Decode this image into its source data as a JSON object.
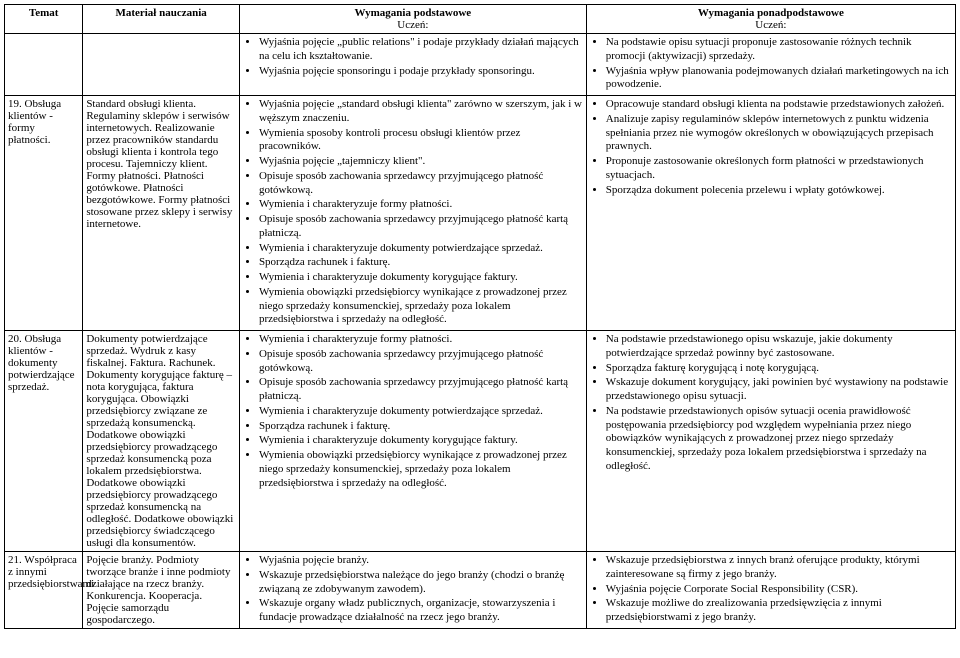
{
  "headers": {
    "temat": "Temat",
    "material": "Materiał nauczania",
    "podstawowe": "Wymagania podstawowe",
    "ponad": "Wymagania ponadpodstawowe",
    "uczen": "Uczeń:"
  },
  "rows": [
    {
      "temat": "",
      "material": "",
      "podst": [
        "Wyjaśnia pojęcie „public relations\" i podaje przykłady działań mających na celu ich kształtowanie.",
        "Wyjaśnia pojęcie sponsoringu i podaje przykłady sponsoringu."
      ],
      "ponad": [
        "Na podstawie opisu sytuacji proponuje zastosowanie różnych technik promocji (aktywizacji) sprzedaży.",
        "Wyjaśnia wpływ planowania podejmowanych działań marketingowych na ich powodzenie."
      ]
    },
    {
      "temat": "19. Obsługa klientów - formy płatności.",
      "material": "Standard obsługi klienta. Regulaminy sklepów i serwisów internetowych. Realizowanie przez pracowników standardu obsługi klienta i kontrola tego procesu. Tajemniczy klient. Formy płatności. Płatności gotówkowe. Płatności bezgotówkowe. Formy płatności stosowane przez sklepy i serwisy internetowe.",
      "podst": [
        "Wyjaśnia pojęcie „standard obsługi klienta\" zarówno w szerszym, jak i w węższym znaczeniu.",
        "Wymienia sposoby kontroli procesu obsługi klientów przez pracowników.",
        "Wyjaśnia pojęcie „tajemniczy klient\".",
        "Opisuje sposób zachowania sprzedawcy przyjmującego płatność gotówkową.",
        "Wymienia i charakteryzuje formy płatności.",
        "Opisuje sposób zachowania sprzedawcy przyjmującego płatność kartą płatniczą.",
        "Wymienia i charakteryzuje dokumenty potwierdzające sprzedaż.",
        "Sporządza rachunek i fakturę.",
        "Wymienia i charakteryzuje dokumenty korygujące faktury.",
        "Wymienia obowiązki przedsiębiorcy wynikające z prowadzonej przez niego sprzedaży konsumenckiej, sprzedaży poza lokalem przedsiębiorstwa i sprzedaży na odległość."
      ],
      "ponad": [
        "Opracowuje standard obsługi klienta na podstawie przedstawionych założeń.",
        "Analizuje zapisy regulaminów sklepów internetowych z punktu widzenia spełniania przez nie wymogów określonych w obowiązujących przepisach prawnych.",
        "Proponuje zastosowanie określonych form płatności w przedstawionych sytuacjach.",
        "Sporządza dokument polecenia przelewu i wpłaty gotówkowej."
      ]
    },
    {
      "temat": "20. Obsługa klientów - dokumenty potwierdzające sprzedaż.",
      "material": "Dokumenty potwierdzające sprzedaż. Wydruk z kasy fiskalnej. Faktura. Rachunek. Dokumenty korygujące fakturę – nota korygująca, faktura korygująca. Obowiązki przedsiębiorcy związane ze sprzedażą konsumencką. Dodatkowe obowiązki przedsiębiorcy prowadzącego sprzedaż konsumencką poza lokalem przedsiębiorstwa. Dodatkowe obowiązki przedsiębiorcy prowadzącego sprzedaż konsumencką na odległość. Dodatkowe obowiązki przedsiębiorcy świadczącego usługi dla konsumentów.",
      "podst": [
        "Wymienia i charakteryzuje formy płatności.",
        "Opisuje sposób zachowania sprzedawcy przyjmującego płatność gotówkową.",
        "Opisuje sposób zachowania sprzedawcy przyjmującego płatność kartą płatniczą.",
        "Wymienia i charakteryzuje dokumenty potwierdzające sprzedaż.",
        "Sporządza rachunek i fakturę.",
        "Wymienia i charakteryzuje dokumenty korygujące faktury.",
        "Wymienia obowiązki przedsiębiorcy wynikające z prowadzonej przez niego sprzedaży konsumenckiej, sprzedaży poza lokalem przedsiębiorstwa i sprzedaży na odległość."
      ],
      "ponad": [
        "Na podstawie przedstawionego opisu wskazuje, jakie dokumenty potwierdzające sprzedaż powinny być zastosowane.",
        "Sporządza fakturę korygującą i notę korygującą.",
        "Wskazuje dokument korygujący, jaki powinien być wystawiony na podstawie przedstawionego opisu sytuacji.",
        "Na podstawie przedstawionych opisów sytuacji ocenia prawidłowość postępowania przedsiębiorcy pod względem wypełniania przez niego obowiązków wynikających z prowadzonej przez niego sprzedaży konsumenckiej, sprzedaży poza lokalem przedsiębiorstwa i sprzedaży na odległość."
      ]
    },
    {
      "temat": "21. Współpraca z innymi przedsiębiorstwami",
      "material": "Pojęcie branży. Podmioty tworzące branże i inne podmioty działające na rzecz branży. Konkurencja. Kooperacja. Pojęcie samorządu gospodarczego.",
      "podst": [
        "Wyjaśnia pojęcie branży.",
        "Wskazuje przedsiębiorstwa należące do jego branży (chodzi o branżę związaną ze zdobywanym zawodem).",
        "Wskazuje organy władz publicznych, organizacje, stowarzyszenia i fundacje prowadzące działalność na rzecz jego branży."
      ],
      "ponad": [
        "Wskazuje przedsiębiorstwa z innych branż oferujące produkty, którymi zainteresowane są firmy z jego branży.",
        "Wyjaśnia pojęcie Corporate Social Responsibility (CSR).",
        "Wskazuje możliwe do zrealizowania przedsięwzięcia z innymi przedsiębiorstwami z jego branży."
      ]
    }
  ]
}
